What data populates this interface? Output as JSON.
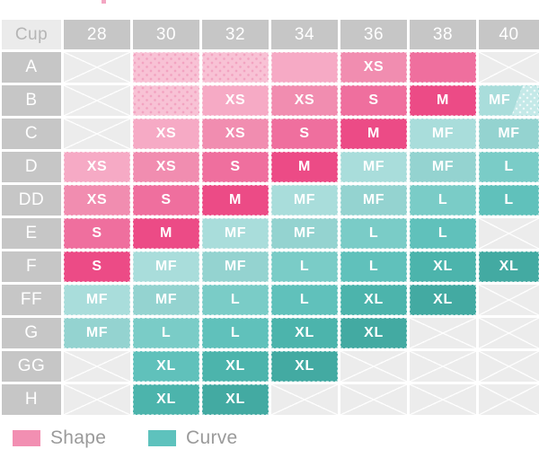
{
  "colors": {
    "corner_bg": "#ebebeb",
    "corner_text": "#b5b5b5",
    "header_bg": "#c6c6c6",
    "header_text": "#ffffff",
    "na_bg": "#ececec",
    "split_overlay": "#c4e9e8",
    "legend_text": "#9a9a9a",
    "top_fragment": "#f3a6c2",
    "shades": {
      "p0": "#f8c2d5",
      "p1": "#f6aac5",
      "p2": "#f18db0",
      "p3": "#ef6f9e",
      "p4": "#ec4b86",
      "t0": "#a9dddb",
      "t1": "#94d3d0",
      "t2": "#7accc7",
      "t3": "#60c1bb",
      "t4": "#4cb4ac",
      "t5": "#43aaa2"
    }
  },
  "chart_data": {
    "type": "table",
    "corner_label": "Cup",
    "columns": [
      "28",
      "30",
      "32",
      "34",
      "36",
      "38",
      "40"
    ],
    "rows": [
      {
        "cup": "A",
        "cells": [
          {
            "na": true
          },
          {
            "shade": "p0",
            "dots": true
          },
          {
            "shade": "p0",
            "dots": true
          },
          {
            "shade": "p1"
          },
          {
            "size": "XS",
            "shade": "p2"
          },
          {
            "shade": "p3"
          },
          {
            "na": true
          }
        ]
      },
      {
        "cup": "B",
        "cells": [
          {
            "na": true
          },
          {
            "shade": "p0",
            "dots": true
          },
          {
            "size": "XS",
            "shade": "p1"
          },
          {
            "size": "XS",
            "shade": "p2"
          },
          {
            "size": "S",
            "shade": "p3"
          },
          {
            "size": "M",
            "shade": "p4"
          },
          {
            "size": "MF",
            "shade": "t0",
            "split": true
          }
        ]
      },
      {
        "cup": "C",
        "cells": [
          {
            "na": true
          },
          {
            "size": "XS",
            "shade": "p1"
          },
          {
            "size": "XS",
            "shade": "p2"
          },
          {
            "size": "S",
            "shade": "p3"
          },
          {
            "size": "M",
            "shade": "p4"
          },
          {
            "size": "MF",
            "shade": "t0"
          },
          {
            "size": "MF",
            "shade": "t1"
          }
        ]
      },
      {
        "cup": "D",
        "cells": [
          {
            "size": "XS",
            "shade": "p1"
          },
          {
            "size": "XS",
            "shade": "p2"
          },
          {
            "size": "S",
            "shade": "p3"
          },
          {
            "size": "M",
            "shade": "p4"
          },
          {
            "size": "MF",
            "shade": "t0"
          },
          {
            "size": "MF",
            "shade": "t1"
          },
          {
            "size": "L",
            "shade": "t2"
          }
        ]
      },
      {
        "cup": "DD",
        "cells": [
          {
            "size": "XS",
            "shade": "p2"
          },
          {
            "size": "S",
            "shade": "p3"
          },
          {
            "size": "M",
            "shade": "p4"
          },
          {
            "size": "MF",
            "shade": "t0"
          },
          {
            "size": "MF",
            "shade": "t1"
          },
          {
            "size": "L",
            "shade": "t2"
          },
          {
            "size": "L",
            "shade": "t3"
          }
        ]
      },
      {
        "cup": "E",
        "cells": [
          {
            "size": "S",
            "shade": "p3"
          },
          {
            "size": "M",
            "shade": "p4"
          },
          {
            "size": "MF",
            "shade": "t0"
          },
          {
            "size": "MF",
            "shade": "t1"
          },
          {
            "size": "L",
            "shade": "t2"
          },
          {
            "size": "L",
            "shade": "t3"
          },
          {
            "na": true
          }
        ]
      },
      {
        "cup": "F",
        "cells": [
          {
            "size": "S",
            "shade": "p4"
          },
          {
            "size": "MF",
            "shade": "t0"
          },
          {
            "size": "MF",
            "shade": "t1"
          },
          {
            "size": "L",
            "shade": "t2"
          },
          {
            "size": "L",
            "shade": "t3"
          },
          {
            "size": "XL",
            "shade": "t4"
          },
          {
            "size": "XL",
            "shade": "t5"
          }
        ]
      },
      {
        "cup": "FF",
        "cells": [
          {
            "size": "MF",
            "shade": "t0"
          },
          {
            "size": "MF",
            "shade": "t1"
          },
          {
            "size": "L",
            "shade": "t2"
          },
          {
            "size": "L",
            "shade": "t3"
          },
          {
            "size": "XL",
            "shade": "t4"
          },
          {
            "size": "XL",
            "shade": "t5"
          },
          {
            "na": true
          }
        ]
      },
      {
        "cup": "G",
        "cells": [
          {
            "size": "MF",
            "shade": "t1"
          },
          {
            "size": "L",
            "shade": "t2"
          },
          {
            "size": "L",
            "shade": "t3"
          },
          {
            "size": "XL",
            "shade": "t4"
          },
          {
            "size": "XL",
            "shade": "t5"
          },
          {
            "na": true
          },
          {
            "na": true
          }
        ]
      },
      {
        "cup": "GG",
        "cells": [
          {
            "na": true
          },
          {
            "size": "XL",
            "shade": "t3"
          },
          {
            "size": "XL",
            "shade": "t4"
          },
          {
            "size": "XL",
            "shade": "t5"
          },
          {
            "na": true
          },
          {
            "na": true
          },
          {
            "na": true
          }
        ]
      },
      {
        "cup": "H",
        "cells": [
          {
            "na": true
          },
          {
            "size": "XL",
            "shade": "t4"
          },
          {
            "size": "XL",
            "shade": "t5"
          },
          {
            "na": true
          },
          {
            "na": true
          },
          {
            "na": true
          },
          {
            "na": true
          }
        ]
      }
    ],
    "legend": [
      {
        "label": "Shape",
        "color": "#f28fb2"
      },
      {
        "label": "Curve",
        "color": "#5ec2bd"
      }
    ],
    "layout_hints": {
      "legend_position": "bottom",
      "grid": "off"
    }
  }
}
